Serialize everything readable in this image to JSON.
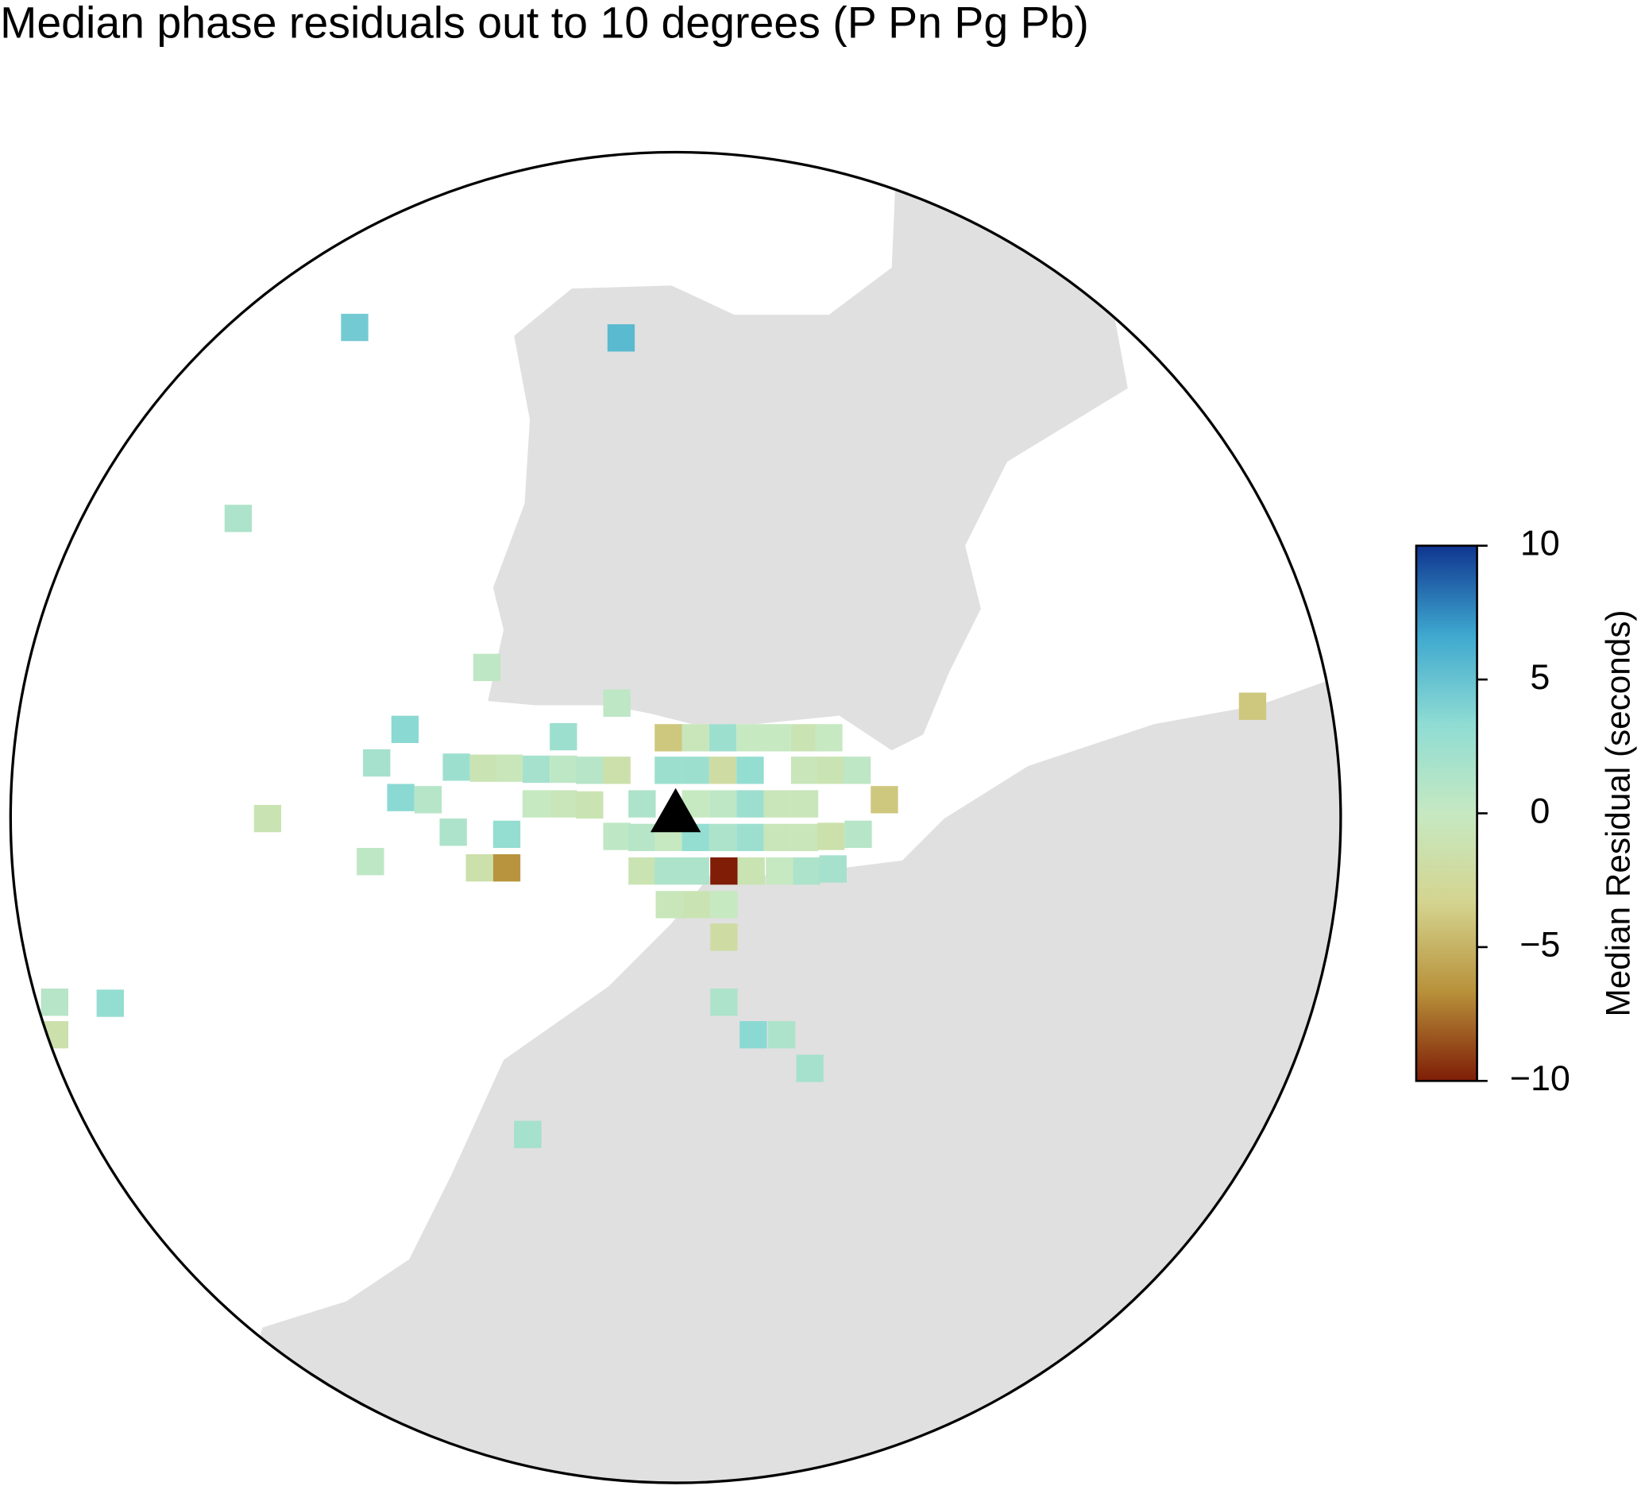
{
  "chart_data": {
    "type": "map",
    "title": "Median phase residuals out to 10 degrees (P Pn Pg Pb)",
    "colorbar_label": "Median Residual (seconds)",
    "clim": [
      -10,
      10
    ],
    "colorbar_ticks": [
      10,
      5,
      0,
      {
        "value": -5,
        "label": "−5"
      },
      {
        "value": -10,
        "label": "−10"
      }
    ],
    "colormap": [
      "#7f1d06",
      "#b8913a",
      "#d4d48f",
      "#c6e9c2",
      "#8fdcd3",
      "#3ea8cf",
      "#0f3590"
    ],
    "land_color": "#e0e0e0",
    "values": [
      4.5,
      5.5,
      1.5,
      0.5,
      0.5,
      -4,
      3.5,
      2.5,
      -4,
      -0.5,
      2.5,
      0,
      0,
      -1,
      0,
      2,
      2.5,
      -1,
      -0.5,
      2,
      0.5,
      1,
      -1.5,
      2.5,
      2.5,
      -2,
      3,
      -0.5,
      -1,
      0.5,
      -1,
      3.5,
      1,
      0,
      -0.5,
      -1,
      1.5,
      0,
      0.5,
      2.5,
      -0.5,
      -0.5,
      -4,
      1.5,
      3,
      0.5,
      1,
      0,
      3,
      1.5,
      2.5,
      -0.5,
      -0.5,
      -1.5,
      1,
      0.5,
      -1.5,
      -6.5,
      -1,
      1.5,
      1.5,
      -10,
      -1,
      0,
      1.5,
      2,
      -0.5,
      -1,
      0,
      -2,
      1.5,
      3.5,
      1.5,
      2,
      2,
      1,
      3,
      -1.5
    ]
  }
}
